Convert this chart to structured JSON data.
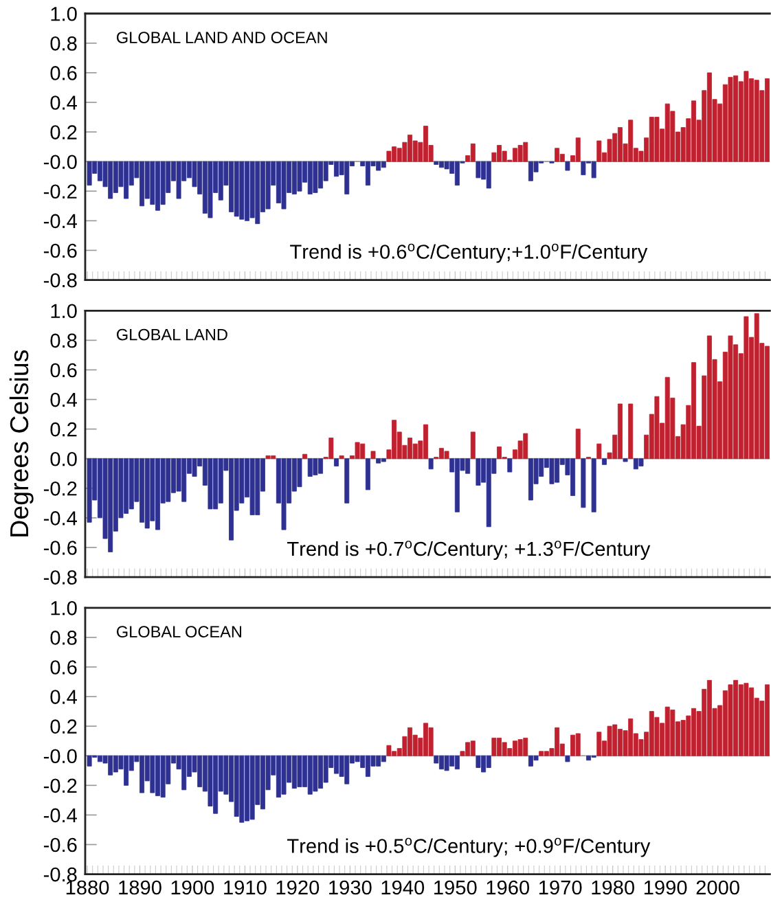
{
  "chart_data": [
    {
      "type": "bar",
      "title": "GLOBAL LAND AND OCEAN",
      "annotations": [
        "Trend is +0.6$^{o}$C/Century;+1.0$^{o}$F/Century"
      ],
      "x": [
        1880,
        1881,
        1882,
        1883,
        1884,
        1885,
        1886,
        1887,
        1888,
        1889,
        1890,
        1891,
        1892,
        1893,
        1894,
        1895,
        1896,
        1897,
        1898,
        1899,
        1900,
        1901,
        1902,
        1903,
        1904,
        1905,
        1906,
        1907,
        1908,
        1909,
        1910,
        1911,
        1912,
        1913,
        1914,
        1915,
        1916,
        1917,
        1918,
        1919,
        1920,
        1921,
        1922,
        1923,
        1924,
        1925,
        1926,
        1927,
        1928,
        1929,
        1930,
        1931,
        1932,
        1933,
        1934,
        1935,
        1936,
        1937,
        1938,
        1939,
        1940,
        1941,
        1942,
        1943,
        1944,
        1945,
        1946,
        1947,
        1948,
        1949,
        1950,
        1951,
        1952,
        1953,
        1954,
        1955,
        1956,
        1957,
        1958,
        1959,
        1960,
        1961,
        1962,
        1963,
        1964,
        1965,
        1966,
        1967,
        1968,
        1969,
        1970,
        1971,
        1972,
        1973,
        1974,
        1975,
        1976,
        1977,
        1978,
        1979,
        1980,
        1981,
        1982,
        1983,
        1984,
        1985,
        1986,
        1987,
        1988,
        1989,
        1990,
        1991,
        1992,
        1993,
        1994,
        1995,
        1996,
        1997,
        1998,
        1999,
        2000,
        2001,
        2002,
        2003,
        2004,
        2005,
        2006,
        2007,
        2008,
        2009
      ],
      "values": [
        -0.16,
        -0.08,
        -0.13,
        -0.17,
        -0.25,
        -0.21,
        -0.17,
        -0.25,
        -0.16,
        -0.11,
        -0.3,
        -0.25,
        -0.29,
        -0.33,
        -0.29,
        -0.21,
        -0.13,
        -0.25,
        -0.13,
        -0.11,
        -0.17,
        -0.22,
        -0.35,
        -0.38,
        -0.21,
        -0.26,
        -0.16,
        -0.34,
        -0.37,
        -0.39,
        -0.4,
        -0.38,
        -0.42,
        -0.34,
        -0.32,
        -0.16,
        -0.28,
        -0.32,
        -0.21,
        -0.22,
        -0.2,
        -0.14,
        -0.22,
        -0.21,
        -0.18,
        -0.13,
        -0.02,
        -0.1,
        -0.09,
        -0.22,
        -0.03,
        0.0,
        -0.03,
        -0.16,
        -0.03,
        -0.06,
        -0.04,
        0.07,
        0.1,
        0.09,
        0.13,
        0.18,
        0.14,
        0.13,
        0.24,
        0.11,
        -0.02,
        -0.04,
        -0.05,
        -0.08,
        -0.16,
        -0.01,
        0.04,
        0.12,
        -0.11,
        -0.12,
        -0.18,
        0.06,
        0.11,
        0.07,
        0.01,
        0.09,
        0.11,
        0.13,
        -0.13,
        -0.07,
        -0.01,
        0.0,
        -0.01,
        0.09,
        0.05,
        -0.06,
        0.04,
        0.16,
        -0.09,
        -0.01,
        -0.11,
        0.14,
        0.06,
        0.15,
        0.19,
        0.23,
        0.12,
        0.28,
        0.09,
        0.07,
        0.16,
        0.3,
        0.3,
        0.22,
        0.39,
        0.34,
        0.2,
        0.23,
        0.29,
        0.41,
        0.28,
        0.48,
        0.6,
        0.42,
        0.39,
        0.52,
        0.57,
        0.58,
        0.54,
        0.61,
        0.56,
        0.55,
        0.48,
        0.56
      ],
      "colors": [
        "#2e3192",
        "#2e3192",
        "#2e3192",
        "#2e3192",
        "#2e3192",
        "#2e3192",
        "#2e3192",
        "#2e3192",
        "#2e3192",
        "#2e3192",
        "#2e3192",
        "#2e3192",
        "#2e3192",
        "#2e3192",
        "#2e3192",
        "#2e3192",
        "#2e3192",
        "#2e3192",
        "#2e3192",
        "#2e3192",
        "#2e3192",
        "#2e3192",
        "#2e3192",
        "#2e3192",
        "#2e3192",
        "#2e3192",
        "#2e3192",
        "#2e3192",
        "#2e3192",
        "#2e3192",
        "#2e3192",
        "#2e3192",
        "#2e3192",
        "#2e3192",
        "#2e3192",
        "#2e3192",
        "#2e3192",
        "#2e3192",
        "#2e3192",
        "#2e3192",
        "#2e3192",
        "#2e3192",
        "#2e3192",
        "#2e3192",
        "#2e3192",
        "#2e3192",
        "#2e3192",
        "#2e3192",
        "#2e3192",
        "#2e3192",
        "#2e3192",
        "#999999",
        "#2e3192",
        "#2e3192",
        "#2e3192",
        "#2e3192",
        "#2e3192",
        "#c1202f",
        "#c1202f",
        "#c1202f",
        "#c1202f",
        "#c1202f",
        "#c1202f",
        "#c1202f",
        "#c1202f",
        "#c1202f",
        "#2e3192",
        "#2e3192",
        "#2e3192",
        "#2e3192",
        "#2e3192",
        "#2e3192",
        "#c1202f",
        "#c1202f",
        "#2e3192",
        "#2e3192",
        "#2e3192",
        "#c1202f",
        "#c1202f",
        "#c1202f",
        "#c1202f",
        "#c1202f",
        "#c1202f",
        "#c1202f",
        "#2e3192",
        "#2e3192",
        "#2e3192",
        "#999999",
        "#2e3192",
        "#c1202f",
        "#c1202f",
        "#2e3192",
        "#c1202f",
        "#c1202f",
        "#2e3192",
        "#2e3192",
        "#2e3192",
        "#c1202f",
        "#c1202f",
        "#c1202f",
        "#c1202f",
        "#c1202f",
        "#c1202f",
        "#c1202f",
        "#c1202f",
        "#c1202f",
        "#c1202f",
        "#c1202f",
        "#c1202f",
        "#c1202f",
        "#c1202f",
        "#c1202f",
        "#c1202f",
        "#c1202f",
        "#c1202f",
        "#c1202f",
        "#c1202f",
        "#c1202f",
        "#c1202f",
        "#c1202f",
        "#c1202f",
        "#c1202f",
        "#c1202f",
        "#c1202f",
        "#c1202f",
        "#c1202f",
        "#c1202f",
        "#c1202f",
        "#c1202f",
        "#c1202f"
      ],
      "xlim": [
        1879.6,
        2009.9
      ],
      "xticks": [
        1880,
        1890,
        1900,
        1910,
        1920,
        1930,
        1940,
        1950,
        1960,
        1970,
        1980,
        1990,
        2000
      ],
      "ylim": [
        -0.8,
        1.0
      ],
      "yticks": [
        {
          "value": 1.0,
          "label": "1.0"
        },
        {
          "value": 0.8,
          "label": "0.8"
        },
        {
          "value": 0.6,
          "label": "0.6"
        },
        {
          "value": 0.4,
          "label": "0.4"
        },
        {
          "value": 0.2,
          "label": "0.2"
        },
        {
          "value": 0,
          "label": "-0.0"
        },
        {
          "value": -0.2,
          "label": "-0.2"
        },
        {
          "value": -0.4,
          "label": "-0.4"
        },
        {
          "value": -0.6,
          "label": "-0.6"
        },
        {
          "value": -0.8,
          "label": "-0.8"
        }
      ],
      "tick_labels": "y"
    },
    {
      "type": "bar",
      "title": "GLOBAL LAND",
      "ylabel": "Degrees Celsius",
      "annotations": [
        "Trend is +0.7$^{o}$C/Century; +1.3$^{o}$F/Century"
      ],
      "x": [
        1880,
        1881,
        1882,
        1883,
        1884,
        1885,
        1886,
        1887,
        1888,
        1889,
        1890,
        1891,
        1892,
        1893,
        1894,
        1895,
        1896,
        1897,
        1898,
        1899,
        1900,
        1901,
        1902,
        1903,
        1904,
        1905,
        1906,
        1907,
        1908,
        1909,
        1910,
        1911,
        1912,
        1913,
        1914,
        1915,
        1916,
        1917,
        1918,
        1919,
        1920,
        1921,
        1922,
        1923,
        1924,
        1925,
        1926,
        1927,
        1928,
        1929,
        1930,
        1931,
        1932,
        1933,
        1934,
        1935,
        1936,
        1937,
        1938,
        1939,
        1940,
        1941,
        1942,
        1943,
        1944,
        1945,
        1946,
        1947,
        1948,
        1949,
        1950,
        1951,
        1952,
        1953,
        1954,
        1955,
        1956,
        1957,
        1958,
        1959,
        1960,
        1961,
        1962,
        1963,
        1964,
        1965,
        1966,
        1967,
        1968,
        1969,
        1970,
        1971,
        1972,
        1973,
        1974,
        1975,
        1976,
        1977,
        1978,
        1979,
        1980,
        1981,
        1982,
        1983,
        1984,
        1985,
        1986,
        1987,
        1988,
        1989,
        1990,
        1991,
        1992,
        1993,
        1994,
        1995,
        1996,
        1997,
        1998,
        1999,
        2000,
        2001,
        2002,
        2003,
        2004,
        2005,
        2006,
        2007,
        2008,
        2009
      ],
      "values": [
        -0.43,
        -0.28,
        -0.4,
        -0.54,
        -0.63,
        -0.49,
        -0.4,
        -0.37,
        -0.34,
        -0.29,
        -0.43,
        -0.47,
        -0.42,
        -0.48,
        -0.3,
        -0.29,
        -0.23,
        -0.22,
        -0.29,
        -0.1,
        -0.12,
        -0.05,
        -0.18,
        -0.34,
        -0.34,
        -0.3,
        -0.08,
        -0.55,
        -0.35,
        -0.3,
        -0.26,
        -0.38,
        -0.38,
        -0.22,
        0.02,
        0.02,
        -0.3,
        -0.48,
        -0.3,
        -0.22,
        -0.19,
        0.03,
        -0.12,
        -0.11,
        -0.1,
        0.01,
        0.14,
        -0.05,
        0.02,
        -0.3,
        0.02,
        0.11,
        0.1,
        -0.21,
        0.05,
        -0.03,
        -0.02,
        0.06,
        0.26,
        0.18,
        0.09,
        0.14,
        0.1,
        0.12,
        0.23,
        -0.07,
        0.01,
        0.07,
        0.05,
        -0.09,
        -0.36,
        -0.08,
        -0.1,
        0.18,
        -0.18,
        -0.16,
        -0.46,
        -0.1,
        0.08,
        0.01,
        -0.09,
        0.06,
        0.12,
        0.17,
        -0.28,
        -0.17,
        -0.12,
        -0.06,
        -0.17,
        -0.16,
        -0.04,
        -0.11,
        -0.25,
        0.2,
        -0.33,
        0.01,
        -0.36,
        0.1,
        -0.04,
        0.04,
        0.16,
        0.37,
        -0.02,
        0.37,
        -0.07,
        -0.05,
        0.16,
        0.3,
        0.42,
        0.24,
        0.55,
        0.41,
        0.15,
        0.23,
        0.36,
        0.65,
        0.22,
        0.56,
        0.83,
        0.67,
        0.52,
        0.72,
        0.83,
        0.77,
        0.71,
        0.96,
        0.82,
        0.98,
        0.78,
        0.76
      ],
      "colors": [
        "#2e3192",
        "#2e3192",
        "#2e3192",
        "#2e3192",
        "#2e3192",
        "#2e3192",
        "#2e3192",
        "#2e3192",
        "#2e3192",
        "#2e3192",
        "#2e3192",
        "#2e3192",
        "#2e3192",
        "#2e3192",
        "#2e3192",
        "#2e3192",
        "#2e3192",
        "#2e3192",
        "#2e3192",
        "#2e3192",
        "#2e3192",
        "#2e3192",
        "#2e3192",
        "#2e3192",
        "#2e3192",
        "#2e3192",
        "#2e3192",
        "#2e3192",
        "#2e3192",
        "#2e3192",
        "#2e3192",
        "#2e3192",
        "#2e3192",
        "#2e3192",
        "#c1202f",
        "#c1202f",
        "#2e3192",
        "#2e3192",
        "#2e3192",
        "#2e3192",
        "#2e3192",
        "#c1202f",
        "#2e3192",
        "#2e3192",
        "#2e3192",
        "#c1202f",
        "#c1202f",
        "#2e3192",
        "#c1202f",
        "#2e3192",
        "#c1202f",
        "#c1202f",
        "#c1202f",
        "#2e3192",
        "#c1202f",
        "#2e3192",
        "#2e3192",
        "#c1202f",
        "#c1202f",
        "#c1202f",
        "#c1202f",
        "#c1202f",
        "#c1202f",
        "#c1202f",
        "#c1202f",
        "#2e3192",
        "#c1202f",
        "#c1202f",
        "#c1202f",
        "#2e3192",
        "#2e3192",
        "#2e3192",
        "#2e3192",
        "#c1202f",
        "#2e3192",
        "#2e3192",
        "#2e3192",
        "#2e3192",
        "#c1202f",
        "#c1202f",
        "#2e3192",
        "#c1202f",
        "#c1202f",
        "#c1202f",
        "#2e3192",
        "#2e3192",
        "#2e3192",
        "#2e3192",
        "#2e3192",
        "#2e3192",
        "#2e3192",
        "#2e3192",
        "#2e3192",
        "#c1202f",
        "#2e3192",
        "#c1202f",
        "#2e3192",
        "#c1202f",
        "#2e3192",
        "#c1202f",
        "#c1202f",
        "#c1202f",
        "#2e3192",
        "#c1202f",
        "#2e3192",
        "#2e3192",
        "#c1202f",
        "#c1202f",
        "#c1202f",
        "#c1202f",
        "#c1202f",
        "#c1202f",
        "#c1202f",
        "#c1202f",
        "#c1202f",
        "#c1202f",
        "#c1202f",
        "#c1202f",
        "#c1202f",
        "#c1202f",
        "#c1202f",
        "#c1202f",
        "#c1202f",
        "#c1202f",
        "#c1202f",
        "#c1202f",
        "#c1202f",
        "#c1202f",
        "#c1202f",
        "#c1202f"
      ],
      "xlim": [
        1879.6,
        2009.9
      ],
      "xticks": [
        1880,
        1890,
        1900,
        1910,
        1920,
        1930,
        1940,
        1950,
        1960,
        1970,
        1980,
        1990,
        2000
      ],
      "ylim": [
        -0.8,
        1.0
      ],
      "yticks": [
        {
          "value": 1.0,
          "label": "1.0"
        },
        {
          "value": 0.8,
          "label": "0.8"
        },
        {
          "value": 0.6,
          "label": "0.6"
        },
        {
          "value": 0.4,
          "label": "0.4"
        },
        {
          "value": 0.2,
          "label": "0.2"
        },
        {
          "value": 0,
          "label": "0.0"
        },
        {
          "value": -0.2,
          "label": "-0.2"
        },
        {
          "value": -0.4,
          "label": "-0.4"
        },
        {
          "value": -0.6,
          "label": "-0.6"
        },
        {
          "value": -0.8,
          "label": "-0.8"
        }
      ],
      "tick_labels": "y"
    },
    {
      "type": "bar",
      "title": "GLOBAL OCEAN",
      "annotations": [
        "Trend is +0.5$^{o}$C/Century; +0.9$^{o}$F/Century"
      ],
      "x": [
        1880,
        1881,
        1882,
        1883,
        1884,
        1885,
        1886,
        1887,
        1888,
        1889,
        1890,
        1891,
        1892,
        1893,
        1894,
        1895,
        1896,
        1897,
        1898,
        1899,
        1900,
        1901,
        1902,
        1903,
        1904,
        1905,
        1906,
        1907,
        1908,
        1909,
        1910,
        1911,
        1912,
        1913,
        1914,
        1915,
        1916,
        1917,
        1918,
        1919,
        1920,
        1921,
        1922,
        1923,
        1924,
        1925,
        1926,
        1927,
        1928,
        1929,
        1930,
        1931,
        1932,
        1933,
        1934,
        1935,
        1936,
        1937,
        1938,
        1939,
        1940,
        1941,
        1942,
        1943,
        1944,
        1945,
        1946,
        1947,
        1948,
        1949,
        1950,
        1951,
        1952,
        1953,
        1954,
        1955,
        1956,
        1957,
        1958,
        1959,
        1960,
        1961,
        1962,
        1963,
        1964,
        1965,
        1966,
        1967,
        1968,
        1969,
        1970,
        1971,
        1972,
        1973,
        1974,
        1975,
        1976,
        1977,
        1978,
        1979,
        1980,
        1981,
        1982,
        1983,
        1984,
        1985,
        1986,
        1987,
        1988,
        1989,
        1990,
        1991,
        1992,
        1993,
        1994,
        1995,
        1996,
        1997,
        1998,
        1999,
        2000,
        2001,
        2002,
        2003,
        2004,
        2005,
        2006,
        2007,
        2008,
        2009
      ],
      "values": [
        -0.07,
        -0.01,
        -0.04,
        -0.05,
        -0.13,
        -0.11,
        -0.09,
        -0.2,
        -0.1,
        -0.04,
        -0.25,
        -0.17,
        -0.25,
        -0.27,
        -0.28,
        -0.19,
        -0.05,
        -0.09,
        -0.23,
        -0.14,
        -0.11,
        -0.21,
        -0.24,
        -0.34,
        -0.39,
        -0.24,
        -0.26,
        -0.31,
        -0.41,
        -0.45,
        -0.44,
        -0.43,
        -0.33,
        -0.36,
        -0.23,
        -0.13,
        -0.28,
        -0.26,
        -0.18,
        -0.22,
        -0.21,
        -0.21,
        -0.26,
        -0.24,
        -0.22,
        -0.18,
        -0.08,
        -0.12,
        -0.14,
        -0.19,
        -0.05,
        -0.04,
        -0.08,
        -0.14,
        -0.07,
        -0.07,
        -0.04,
        0.07,
        0.03,
        0.05,
        0.13,
        0.19,
        0.14,
        0.12,
        0.22,
        0.19,
        -0.05,
        -0.09,
        -0.1,
        -0.07,
        -0.09,
        0.03,
        0.09,
        0.1,
        -0.08,
        -0.11,
        -0.08,
        0.12,
        0.12,
        0.09,
        0.05,
        0.1,
        0.11,
        0.12,
        -0.07,
        -0.03,
        0.03,
        0.03,
        0.05,
        0.19,
        0.08,
        -0.04,
        0.14,
        0.15,
        0.0,
        -0.03,
        -0.01,
        0.16,
        0.1,
        0.2,
        0.21,
        0.18,
        0.17,
        0.25,
        0.15,
        0.11,
        0.16,
        0.3,
        0.26,
        0.22,
        0.33,
        0.31,
        0.23,
        0.24,
        0.27,
        0.32,
        0.3,
        0.45,
        0.51,
        0.32,
        0.34,
        0.44,
        0.48,
        0.51,
        0.48,
        0.49,
        0.46,
        0.39,
        0.37,
        0.48
      ],
      "colors": [
        "#2e3192",
        "#2e3192",
        "#2e3192",
        "#2e3192",
        "#2e3192",
        "#2e3192",
        "#2e3192",
        "#2e3192",
        "#2e3192",
        "#2e3192",
        "#2e3192",
        "#2e3192",
        "#2e3192",
        "#2e3192",
        "#2e3192",
        "#2e3192",
        "#2e3192",
        "#2e3192",
        "#2e3192",
        "#2e3192",
        "#2e3192",
        "#2e3192",
        "#2e3192",
        "#2e3192",
        "#2e3192",
        "#2e3192",
        "#2e3192",
        "#2e3192",
        "#2e3192",
        "#2e3192",
        "#2e3192",
        "#2e3192",
        "#2e3192",
        "#2e3192",
        "#2e3192",
        "#2e3192",
        "#2e3192",
        "#2e3192",
        "#2e3192",
        "#2e3192",
        "#2e3192",
        "#2e3192",
        "#2e3192",
        "#2e3192",
        "#2e3192",
        "#2e3192",
        "#2e3192",
        "#2e3192",
        "#2e3192",
        "#2e3192",
        "#2e3192",
        "#2e3192",
        "#2e3192",
        "#2e3192",
        "#2e3192",
        "#2e3192",
        "#2e3192",
        "#c1202f",
        "#c1202f",
        "#c1202f",
        "#c1202f",
        "#c1202f",
        "#c1202f",
        "#c1202f",
        "#c1202f",
        "#c1202f",
        "#2e3192",
        "#2e3192",
        "#2e3192",
        "#2e3192",
        "#2e3192",
        "#c1202f",
        "#c1202f",
        "#c1202f",
        "#2e3192",
        "#2e3192",
        "#2e3192",
        "#c1202f",
        "#c1202f",
        "#c1202f",
        "#c1202f",
        "#c1202f",
        "#c1202f",
        "#c1202f",
        "#2e3192",
        "#2e3192",
        "#c1202f",
        "#c1202f",
        "#c1202f",
        "#c1202f",
        "#c1202f",
        "#2e3192",
        "#c1202f",
        "#c1202f",
        "#999999",
        "#2e3192",
        "#2e3192",
        "#c1202f",
        "#c1202f",
        "#c1202f",
        "#c1202f",
        "#c1202f",
        "#c1202f",
        "#c1202f",
        "#c1202f",
        "#c1202f",
        "#c1202f",
        "#c1202f",
        "#c1202f",
        "#c1202f",
        "#c1202f",
        "#c1202f",
        "#c1202f",
        "#c1202f",
        "#c1202f",
        "#c1202f",
        "#c1202f",
        "#c1202f",
        "#c1202f",
        "#c1202f",
        "#c1202f",
        "#c1202f",
        "#c1202f",
        "#c1202f",
        "#c1202f",
        "#c1202f",
        "#c1202f",
        "#c1202f",
        "#c1202f",
        "#c1202f"
      ],
      "xlim": [
        1879.6,
        2009.9
      ],
      "xticks": [
        1880,
        1890,
        1900,
        1910,
        1920,
        1930,
        1940,
        1950,
        1960,
        1970,
        1980,
        1990,
        2000
      ],
      "ylim": [
        -0.8,
        1.0
      ],
      "yticks": [
        {
          "value": 1.0,
          "label": "1.0"
        },
        {
          "value": 0.8,
          "label": "0.8"
        },
        {
          "value": 0.6,
          "label": "0.6"
        },
        {
          "value": 0.4,
          "label": "0.4"
        },
        {
          "value": 0.2,
          "label": "0.2"
        },
        {
          "value": 0,
          "label": "-0.0"
        },
        {
          "value": -0.2,
          "label": "-0.2"
        },
        {
          "value": -0.4,
          "label": "-0.4"
        },
        {
          "value": -0.6,
          "label": "-0.6"
        },
        {
          "value": -0.8,
          "label": "-0.8"
        }
      ]
    }
  ]
}
